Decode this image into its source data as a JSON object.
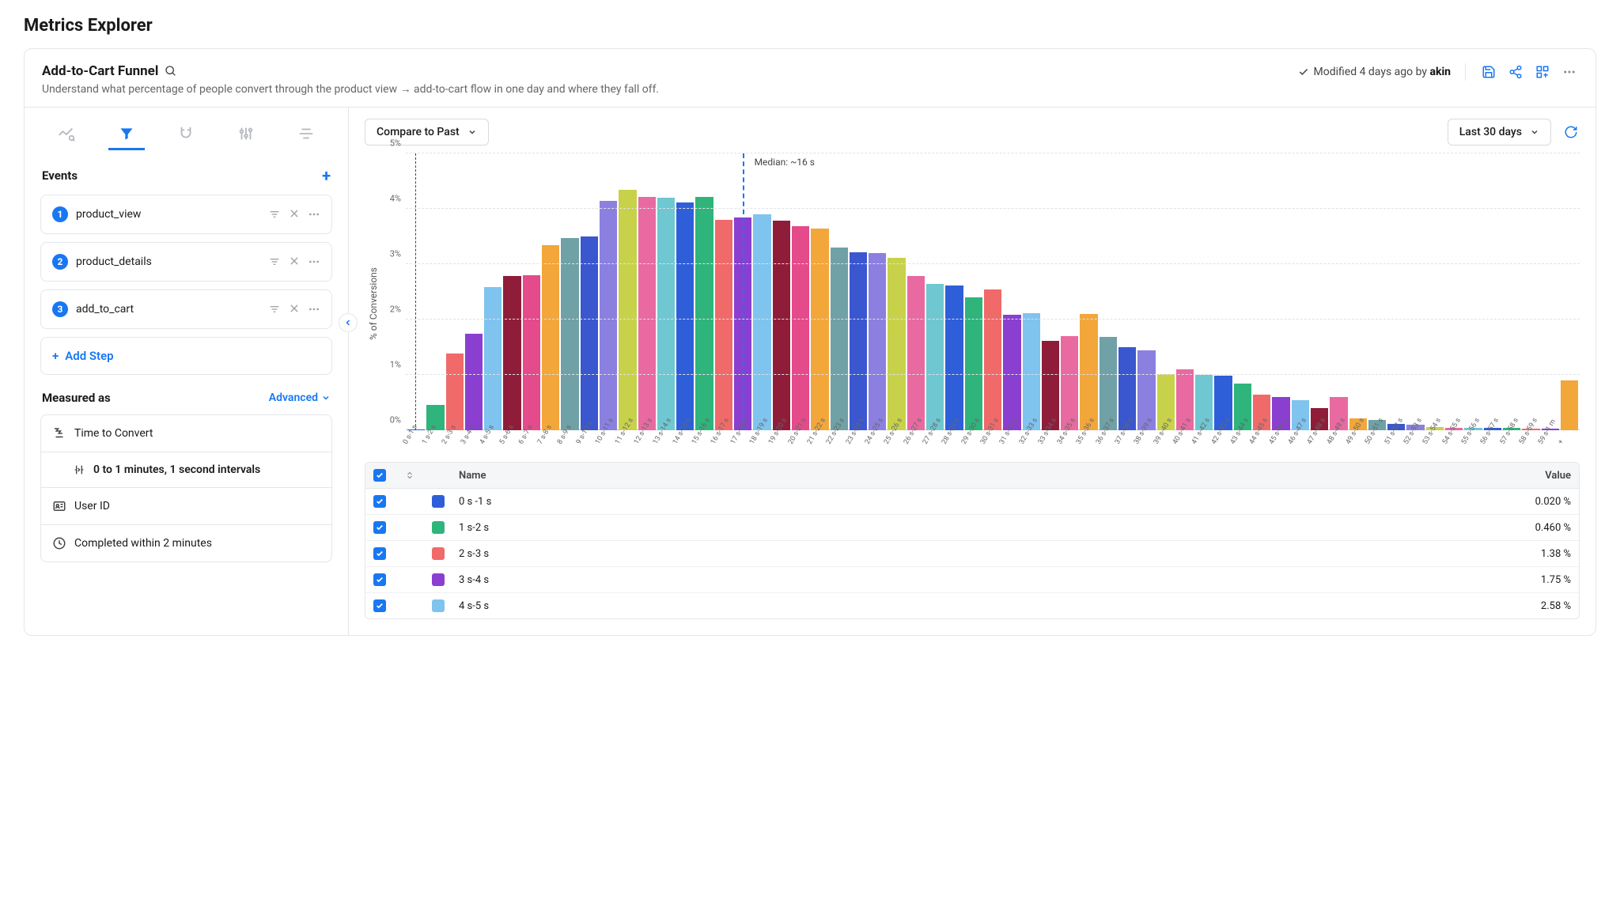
{
  "page_title": "Metrics Explorer",
  "header": {
    "title": "Add-to-Cart Funnel",
    "subtitle": "Understand what percentage of people convert through the product view → add-to-cart flow in one day and where they fall off.",
    "modified_prefix": "Modified 4 days ago by ",
    "modified_user": "akin"
  },
  "sidebar": {
    "events_title": "Events",
    "events": [
      {
        "num": "1",
        "name": "product_view"
      },
      {
        "num": "2",
        "name": "product_details"
      },
      {
        "num": "3",
        "name": "add_to_cart"
      }
    ],
    "add_step_label": "Add Step",
    "measured_title": "Measured as",
    "advanced_label": "Advanced",
    "measure": {
      "time_to_convert": "Time to Convert",
      "interval_text": "0 to 1 minutes, 1 second intervals",
      "user_id": "User ID",
      "completed": "Completed within 2 minutes"
    }
  },
  "toolbar": {
    "compare_label": "Compare to Past",
    "range_label": "Last 30 days"
  },
  "chart": {
    "type": "bar",
    "y_label": "% of Conversions",
    "y_max": 5,
    "y_ticks": [
      "0%",
      "1%",
      "2%",
      "3%",
      "4%",
      "5%"
    ],
    "median_label": "Median: ~16 s",
    "median_index": 17,
    "grid_color": "#e0e2e6",
    "background_color": "#ffffff",
    "bars": [
      {
        "label": "0 s-1 s",
        "value": 0.02,
        "color": "#2e5fd9"
      },
      {
        "label": "1 s-2 s",
        "value": 0.46,
        "color": "#2fb47b"
      },
      {
        "label": "2 s-3 s",
        "value": 1.38,
        "color": "#f06a6a"
      },
      {
        "label": "3 s-4 s",
        "value": 1.75,
        "color": "#8a3fd1"
      },
      {
        "label": "4 s-5 s",
        "value": 2.58,
        "color": "#7fc3ef"
      },
      {
        "label": "5 s-6 s",
        "value": 2.78,
        "color": "#8f1d3a"
      },
      {
        "label": "6 s-7 s",
        "value": 2.8,
        "color": "#e54a8a"
      },
      {
        "label": "7 s-8 s",
        "value": 3.35,
        "color": "#f3a63a"
      },
      {
        "label": "8 s-9 s",
        "value": 3.47,
        "color": "#6fa1a6"
      },
      {
        "label": "9 s-10 s",
        "value": 3.5,
        "color": "#3a57d0"
      },
      {
        "label": "10 s-11 s",
        "value": 4.15,
        "color": "#8b80e0"
      },
      {
        "label": "11 s-12 s",
        "value": 4.35,
        "color": "#c7d24a"
      },
      {
        "label": "12 s-13 s",
        "value": 4.22,
        "color": "#e86aa0"
      },
      {
        "label": "13 s-14 s",
        "value": 4.2,
        "color": "#6fc7d1"
      },
      {
        "label": "14 s-15 s",
        "value": 4.12,
        "color": "#2e5fd9"
      },
      {
        "label": "15 s-16 s",
        "value": 4.22,
        "color": "#2fb47b"
      },
      {
        "label": "16 s-17 s",
        "value": 3.8,
        "color": "#f06a6a"
      },
      {
        "label": "17 s-18 s",
        "value": 3.85,
        "color": "#8a3fd1"
      },
      {
        "label": "18 s-19 s",
        "value": 3.9,
        "color": "#7fc3ef"
      },
      {
        "label": "19 s-20 s",
        "value": 3.78,
        "color": "#8f1d3a"
      },
      {
        "label": "20 s-21 s",
        "value": 3.68,
        "color": "#e54a8a"
      },
      {
        "label": "21 s-22 s",
        "value": 3.65,
        "color": "#f3a63a"
      },
      {
        "label": "22 s-23 s",
        "value": 3.3,
        "color": "#6fa1a6"
      },
      {
        "label": "23 s-24 s",
        "value": 3.22,
        "color": "#3a57d0"
      },
      {
        "label": "24 s-25 s",
        "value": 3.2,
        "color": "#8b80e0"
      },
      {
        "label": "25 s-26 s",
        "value": 3.12,
        "color": "#c7d24a"
      },
      {
        "label": "26 s-27 s",
        "value": 2.78,
        "color": "#e86aa0"
      },
      {
        "label": "27 s-28 s",
        "value": 2.65,
        "color": "#6fc7d1"
      },
      {
        "label": "28 s-29 s",
        "value": 2.62,
        "color": "#2e5fd9"
      },
      {
        "label": "29 s-30 s",
        "value": 2.4,
        "color": "#2fb47b"
      },
      {
        "label": "30 s-31 s",
        "value": 2.55,
        "color": "#f06a6a"
      },
      {
        "label": "31 s-32 s",
        "value": 2.08,
        "color": "#8a3fd1"
      },
      {
        "label": "32 s-33 s",
        "value": 2.12,
        "color": "#7fc3ef"
      },
      {
        "label": "33 s-34 s",
        "value": 1.62,
        "color": "#8f1d3a"
      },
      {
        "label": "34 s-35 s",
        "value": 1.7,
        "color": "#e86aa0"
      },
      {
        "label": "35 s-36 s",
        "value": 2.1,
        "color": "#f3a63a"
      },
      {
        "label": "36 s-37 s",
        "value": 1.68,
        "color": "#6fa1a6"
      },
      {
        "label": "37 s-38 s",
        "value": 1.5,
        "color": "#3a57d0"
      },
      {
        "label": "38 s-39 s",
        "value": 1.45,
        "color": "#8b80e0"
      },
      {
        "label": "39 s-40 s",
        "value": 1.02,
        "color": "#c7d24a"
      },
      {
        "label": "40 s-41 s",
        "value": 1.1,
        "color": "#e86aa0"
      },
      {
        "label": "41 s-42 s",
        "value": 1.0,
        "color": "#6fc7d1"
      },
      {
        "label": "42 s-43 s",
        "value": 0.98,
        "color": "#2e5fd9"
      },
      {
        "label": "43 s-44 s",
        "value": 0.85,
        "color": "#2fb47b"
      },
      {
        "label": "44 s-45 s",
        "value": 0.65,
        "color": "#f06a6a"
      },
      {
        "label": "45 s-46 s",
        "value": 0.6,
        "color": "#8a3fd1"
      },
      {
        "label": "46 s-47 s",
        "value": 0.55,
        "color": "#7fc3ef"
      },
      {
        "label": "47 s-48 s",
        "value": 0.4,
        "color": "#8f1d3a"
      },
      {
        "label": "48 s-49 s",
        "value": 0.6,
        "color": "#e86aa0"
      },
      {
        "label": "49 s-50 s",
        "value": 0.22,
        "color": "#f3a63a"
      },
      {
        "label": "50 s-51 s",
        "value": 0.18,
        "color": "#6fa1a6"
      },
      {
        "label": "51 s-52 s",
        "value": 0.12,
        "color": "#3a57d0"
      },
      {
        "label": "52 s-53 s",
        "value": 0.1,
        "color": "#8b80e0"
      },
      {
        "label": "53 s-54 s",
        "value": 0.06,
        "color": "#c7d24a"
      },
      {
        "label": "54 s-55 s",
        "value": 0.05,
        "color": "#e86aa0"
      },
      {
        "label": "55 s-56 s",
        "value": 0.05,
        "color": "#6fc7d1"
      },
      {
        "label": "56 s-57 s",
        "value": 0.04,
        "color": "#2e5fd9"
      },
      {
        "label": "57 s-58 s",
        "value": 0.04,
        "color": "#2fb47b"
      },
      {
        "label": "58 s-59 s",
        "value": 0.03,
        "color": "#f06a6a"
      },
      {
        "label": "59 s-1 m",
        "value": 0.03,
        "color": "#8a3fd1"
      },
      {
        "label": "+",
        "value": 0.9,
        "color": "#f3a63a"
      }
    ]
  },
  "table": {
    "headers": {
      "name": "Name",
      "value": "Value"
    },
    "rows": [
      {
        "label": "0 s -1 s",
        "value": "0.020 %",
        "color": "#2e5fd9"
      },
      {
        "label": "1 s-2 s",
        "value": "0.460 %",
        "color": "#2fb47b"
      },
      {
        "label": "2 s-3 s",
        "value": "1.38 %",
        "color": "#f06a6a"
      },
      {
        "label": "3 s-4 s",
        "value": "1.75 %",
        "color": "#8a3fd1"
      },
      {
        "label": "4 s-5 s",
        "value": "2.58 %",
        "color": "#7fc3ef"
      }
    ]
  }
}
